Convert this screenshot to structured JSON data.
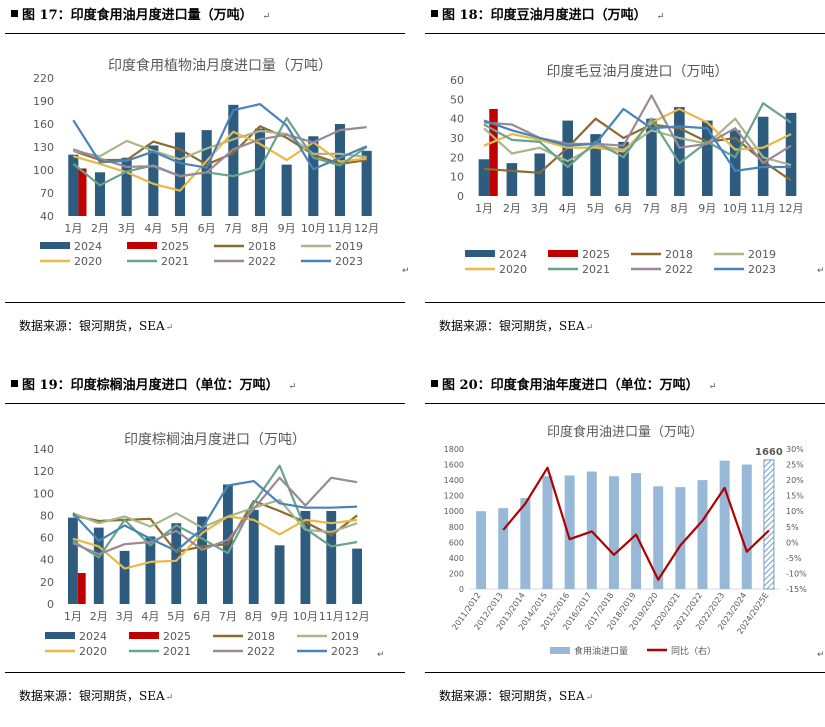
{
  "source_text": "数据来源：银河期货，SEA",
  "source_mark": "↵",
  "caption_mark": "↵",
  "colors": {
    "2024": "#2e5c7e",
    "2025": "#c00000",
    "2018": "#8b6b2e",
    "2019": "#a9b58a",
    "2020": "#e8b84a",
    "2021": "#6aa38c",
    "2022": "#9b8a95",
    "2023": "#4a83b8",
    "bars_annual": "#97b8d6",
    "yoy_line": "#b00000"
  },
  "chart_data": [
    {
      "id": "fig17",
      "caption": "图 17：印度食用油月度进口量（万吨）",
      "type": "bar+line",
      "title": "印度食用植物油月度进口量（万吨）",
      "categories": [
        "1月",
        "2月",
        "3月",
        "4月",
        "5月",
        "6月",
        "7月",
        "8月",
        "9月",
        "10月",
        "11月",
        "12月"
      ],
      "ylim": [
        40,
        220
      ],
      "yticks": [
        40,
        70,
        100,
        130,
        160,
        190,
        220
      ],
      "bars": [
        {
          "name": "2024",
          "values": [
            120,
            97,
            116,
            132,
            149,
            152,
            185,
            154,
            107,
            144,
            160,
            125
          ]
        },
        {
          "name": "2025",
          "values": [
            102
          ]
        }
      ],
      "series": [
        {
          "name": "2018",
          "values": [
            125,
            113,
            113,
            137,
            127,
            107,
            122,
            157,
            142,
            120,
            108,
            113
          ]
        },
        {
          "name": "2019",
          "values": [
            125,
            118,
            138,
            125,
            114,
            128,
            140,
            151,
            147,
            121,
            121,
            117
          ]
        },
        {
          "name": "2020",
          "values": [
            118,
            108,
            97,
            82,
            73,
            112,
            150,
            134,
            113,
            136,
            111,
            115
          ]
        },
        {
          "name": "2021",
          "values": [
            108,
            80,
            98,
            106,
            92,
            97,
            92,
            102,
            168,
            116,
            106,
            130
          ]
        },
        {
          "name": "2022",
          "values": [
            127,
            115,
            104,
            105,
            92,
            97,
            127,
            140,
            146,
            136,
            152,
            156
          ]
        },
        {
          "name": "2023",
          "values": [
            165,
            110,
            112,
            124,
            109,
            103,
            178,
            186,
            158,
            101,
            116,
            131
          ]
        }
      ],
      "legend": [
        "2024",
        "2025",
        "2018",
        "2019",
        "2020",
        "2021",
        "2022",
        "2023"
      ]
    },
    {
      "id": "fig18",
      "caption": "图 18：印度豆油月度进口（万吨）",
      "type": "bar+line",
      "title": "印度毛豆油月度进口（万吨）",
      "categories": [
        "1月",
        "2月",
        "3月",
        "4月",
        "5月",
        "6月",
        "7月",
        "8月",
        "9月",
        "10月",
        "11月",
        "12月"
      ],
      "ylim": [
        0,
        60
      ],
      "yticks": [
        0,
        10,
        20,
        30,
        40,
        50,
        60
      ],
      "bars": [
        {
          "name": "2024",
          "values": [
            19,
            17,
            22,
            39,
            32,
            28,
            40,
            46,
            39,
            34,
            41,
            43
          ]
        },
        {
          "name": "2025",
          "values": [
            45
          ]
        }
      ],
      "series": [
        {
          "name": "2018",
          "values": [
            14,
            13,
            12,
            25,
            40,
            30,
            37,
            35,
            28,
            30,
            18,
            8
          ]
        },
        {
          "name": "2019",
          "values": [
            35,
            22,
            25,
            18,
            26,
            24,
            34,
            30,
            27,
            40,
            20,
            16
          ]
        },
        {
          "name": "2020",
          "values": [
            26,
            32,
            29,
            25,
            25,
            23,
            38,
            45,
            38,
            24,
            25,
            32
          ]
        },
        {
          "name": "2021",
          "values": [
            37,
            29,
            28,
            15,
            28,
            20,
            40,
            17,
            28,
            20,
            48,
            38
          ]
        },
        {
          "name": "2022",
          "values": [
            38,
            37,
            30,
            27,
            27,
            26,
            52,
            25,
            27,
            35,
            17,
            26
          ]
        },
        {
          "name": "2023",
          "values": [
            39,
            34,
            30,
            26,
            27,
            45,
            35,
            36,
            35,
            13,
            15,
            15
          ]
        }
      ],
      "legend": [
        "2024",
        "2025",
        "2018",
        "2019",
        "2020",
        "2021",
        "2022",
        "2023"
      ]
    },
    {
      "id": "fig19",
      "caption": "图 19：印度棕榈油月度进口（单位：万吨）",
      "type": "bar+line",
      "title": "印度棕榈油月度进口（万吨）",
      "categories": [
        "1月",
        "2月",
        "3月",
        "4月",
        "5月",
        "6月",
        "7月",
        "8月",
        "9月",
        "10月",
        "11月",
        "12月"
      ],
      "ylim": [
        0,
        140
      ],
      "yticks": [
        0,
        20,
        40,
        60,
        80,
        100,
        120,
        140
      ],
      "bars": [
        {
          "name": "2024",
          "values": [
            78,
            69,
            48,
            61,
            73,
            79,
            108,
            85,
            53,
            84,
            84,
            50
          ]
        },
        {
          "name": "2025",
          "values": [
            28
          ]
        }
      ],
      "series": [
        {
          "name": "2018",
          "values": [
            80,
            75,
            76,
            77,
            47,
            52,
            54,
            93,
            84,
            74,
            62,
            80
          ]
        },
        {
          "name": "2019",
          "values": [
            82,
            73,
            79,
            70,
            82,
            69,
            79,
            87,
            94,
            67,
            65,
            73
          ]
        },
        {
          "name": "2020",
          "values": [
            59,
            52,
            32,
            38,
            39,
            64,
            79,
            76,
            63,
            76,
            73,
            76
          ]
        },
        {
          "name": "2021",
          "values": [
            57,
            42,
            76,
            53,
            71,
            59,
            46,
            91,
            125,
            68,
            52,
            56
          ]
        },
        {
          "name": "2022",
          "values": [
            55,
            45,
            54,
            56,
            66,
            49,
            58,
            86,
            114,
            89,
            114,
            110
          ]
        },
        {
          "name": "2023",
          "values": [
            82,
            57,
            71,
            59,
            48,
            68,
            107,
            111,
            91,
            87,
            87,
            88
          ]
        }
      ],
      "legend": [
        "2024",
        "2025",
        "2018",
        "2019",
        "2020",
        "2021",
        "2022",
        "2023"
      ]
    },
    {
      "id": "fig20",
      "caption": "图 20：印度食用油年度进口（单位：万吨）",
      "type": "bar+line dual-axis",
      "title": "印度食用油进口量（万吨）",
      "categories": [
        "2011/2012",
        "2012/2013",
        "2013/2014",
        "2014/2015",
        "2015/2016",
        "2016/2017",
        "2017/2018",
        "2018/2019",
        "2019/2020",
        "2020/2021",
        "2021/2022",
        "2022/2023",
        "2023/2024",
        "2024/2025E"
      ],
      "ylim": [
        0,
        1800
      ],
      "yticks": [
        0,
        200,
        400,
        600,
        800,
        1000,
        1200,
        1400,
        1600,
        1800
      ],
      "y2lim": [
        -15,
        30
      ],
      "y2ticks": [
        "-15%",
        "-10%",
        "-5%",
        "0%",
        "5%",
        "10%",
        "15%",
        "20%",
        "25%",
        "30%"
      ],
      "bar_series": {
        "name": "食用油进口量",
        "values": [
          1000,
          1040,
          1170,
          1450,
          1460,
          1510,
          1450,
          1490,
          1320,
          1310,
          1400,
          1650,
          1600,
          1660
        ]
      },
      "line_series": {
        "name": "同比（右）",
        "values": [
          null,
          4,
          12.5,
          24,
          1,
          3.5,
          -4,
          2.5,
          -12,
          -1,
          7,
          17.5,
          -3,
          3.8
        ]
      },
      "last_label": "1660",
      "legend": [
        "食用油进口量",
        "同比（右）"
      ]
    }
  ]
}
